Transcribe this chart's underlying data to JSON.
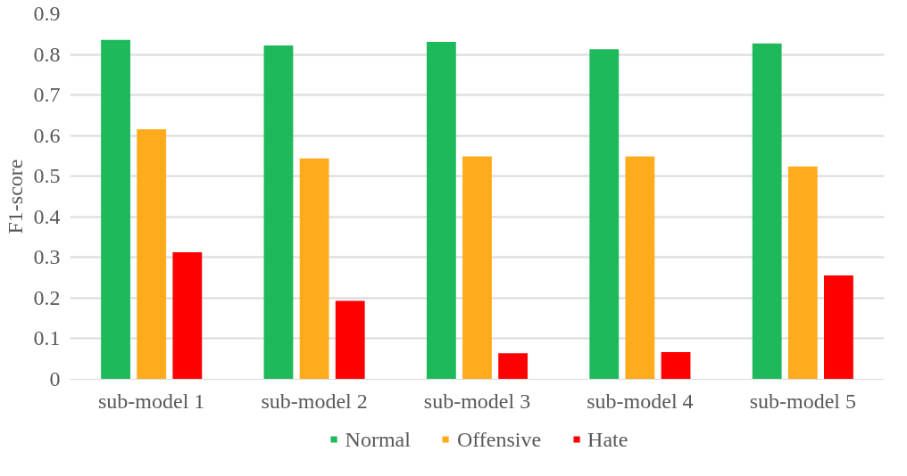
{
  "chart_data": {
    "type": "bar",
    "ylabel": "F1-score",
    "categories": [
      "sub-model 1",
      "sub-model 2",
      "sub-model 3",
      "sub-model 4",
      "sub-model 5"
    ],
    "series": [
      {
        "name": "Normal",
        "color": "#1db95b",
        "values": [
          0.836,
          0.822,
          0.831,
          0.813,
          0.827
        ]
      },
      {
        "name": "Offensive",
        "color": "#ffab1c",
        "values": [
          0.616,
          0.544,
          0.549,
          0.549,
          0.524
        ]
      },
      {
        "name": "Hate",
        "color": "#ff0000",
        "values": [
          0.313,
          0.193,
          0.064,
          0.067,
          0.256
        ]
      }
    ],
    "ylim": [
      0,
      0.9
    ],
    "yticks": [
      0,
      {
        "value": 0.1,
        "label": "0.1"
      },
      {
        "value": 0.2,
        "label": "0.2"
      },
      {
        "value": 0.3,
        "label": "0.3"
      },
      {
        "value": 0.4,
        "label": "0.4"
      },
      {
        "value": 0.5,
        "label": "0.5"
      },
      {
        "value": 0.6,
        "label": "0.6"
      },
      {
        "value": 0.7,
        "label": "0.7"
      },
      {
        "value": 0.8,
        "label": "0.8"
      },
      {
        "value": 0.9,
        "label": "0.9"
      }
    ],
    "grid": "y",
    "legend": "bottom"
  }
}
